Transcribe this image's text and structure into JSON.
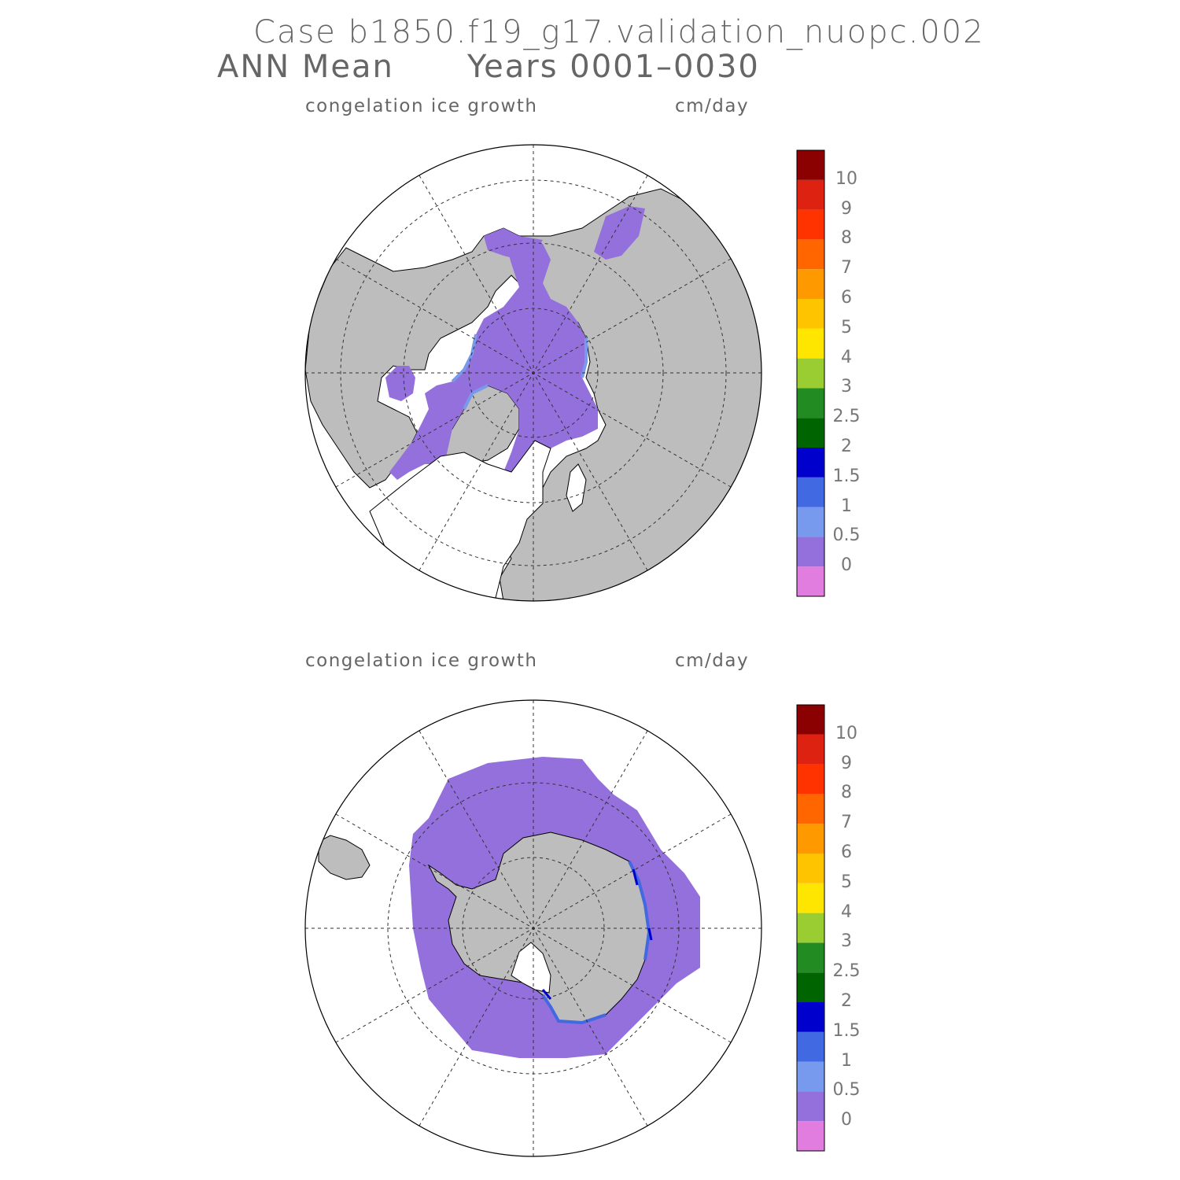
{
  "header": {
    "title_case": "Case b1850.f19_g17.validation_nuopc.002",
    "title_period": "ANN Mean",
    "title_years": "Years 0001–0030"
  },
  "panels": [
    {
      "variable": "congelation ice growth",
      "units": "cm/day",
      "hemisphere": "north"
    },
    {
      "variable": "congelation ice growth",
      "units": "cm/day",
      "hemisphere": "south"
    }
  ],
  "colorbar": {
    "colors": [
      "#e27de0",
      "#9370db",
      "#7799ee",
      "#4169e1",
      "#0000cd",
      "#006400",
      "#228b22",
      "#9acd32",
      "#ffe600",
      "#ffc400",
      "#ff9900",
      "#ff6600",
      "#ff3300",
      "#dd2211",
      "#8b0000"
    ],
    "labels": [
      "0",
      "0.5",
      "1",
      "1.5",
      "2",
      "2.5",
      "3",
      "4",
      "5",
      "6",
      "7",
      "8",
      "9",
      "10"
    ]
  },
  "colors": {
    "land": "#bdbdbd",
    "ice": "#9370db",
    "ice_edge": "#7799ee",
    "ocean": "#ffffff"
  }
}
